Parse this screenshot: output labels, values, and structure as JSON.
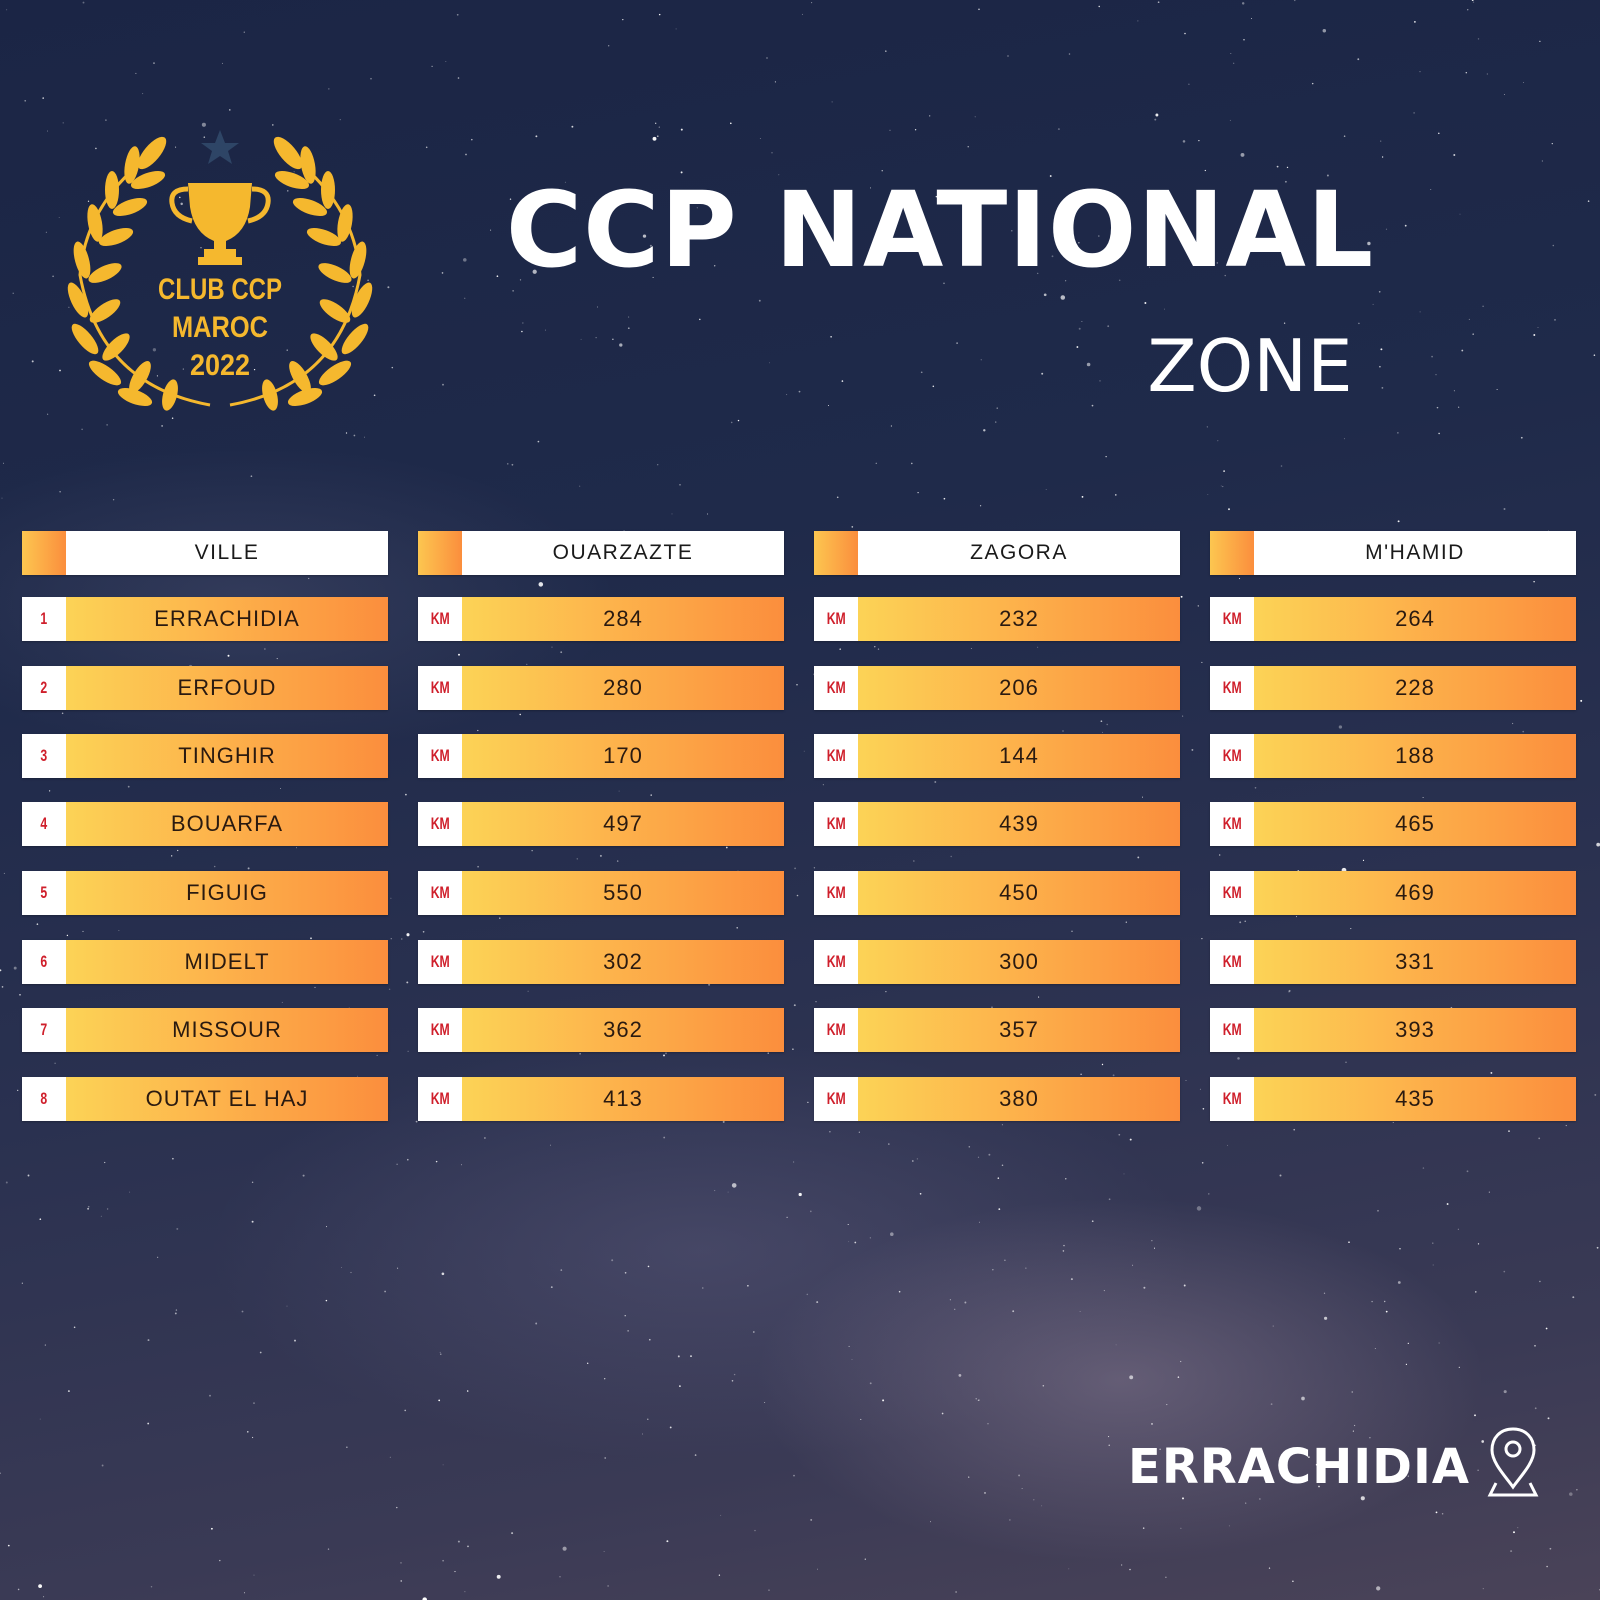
{
  "logo": {
    "line1": "CLUB CCP",
    "line2": "MAROC",
    "line3": "2022",
    "icon": "trophy-laurel-icon",
    "star_icon": "star-icon",
    "gold": "#f5b82e",
    "star_color": "#2e4566"
  },
  "title": "CCP NATIONAL",
  "subtitle": "ZONE",
  "table": {
    "headers": [
      "VILLE",
      "OUARZAZTE",
      "ZAGORA",
      "M'HAMID"
    ],
    "unit": "KM",
    "rows": [
      {
        "rank": "1",
        "city": "ERRACHIDIA",
        "distances": [
          "284",
          "232",
          "264"
        ]
      },
      {
        "rank": "2",
        "city": "ERFOUD",
        "distances": [
          "280",
          "206",
          "228"
        ]
      },
      {
        "rank": "3",
        "city": "TINGHIR",
        "distances": [
          "170",
          "144",
          "188"
        ]
      },
      {
        "rank": "4",
        "city": "BOUARFA",
        "distances": [
          "497",
          "439",
          "465"
        ]
      },
      {
        "rank": "5",
        "city": "FIGUIG",
        "distances": [
          "550",
          "450",
          "469"
        ]
      },
      {
        "rank": "6",
        "city": "MIDELT",
        "distances": [
          "302",
          "300",
          "331"
        ]
      },
      {
        "rank": "7",
        "city": "MISSOUR",
        "distances": [
          "362",
          "357",
          "393"
        ]
      },
      {
        "rank": "8",
        "city": "OUTAT EL HAJ",
        "distances": [
          "413",
          "380",
          "435"
        ]
      }
    ]
  },
  "footer": {
    "location": "ERRACHIDIA",
    "icon": "location-pin-icon"
  },
  "colors": {
    "accent_gradient_start": "#fcd356",
    "accent_gradient_end": "#fb8e3d",
    "tag_text": "#cf1f2b",
    "background": "#1f2a4a"
  }
}
